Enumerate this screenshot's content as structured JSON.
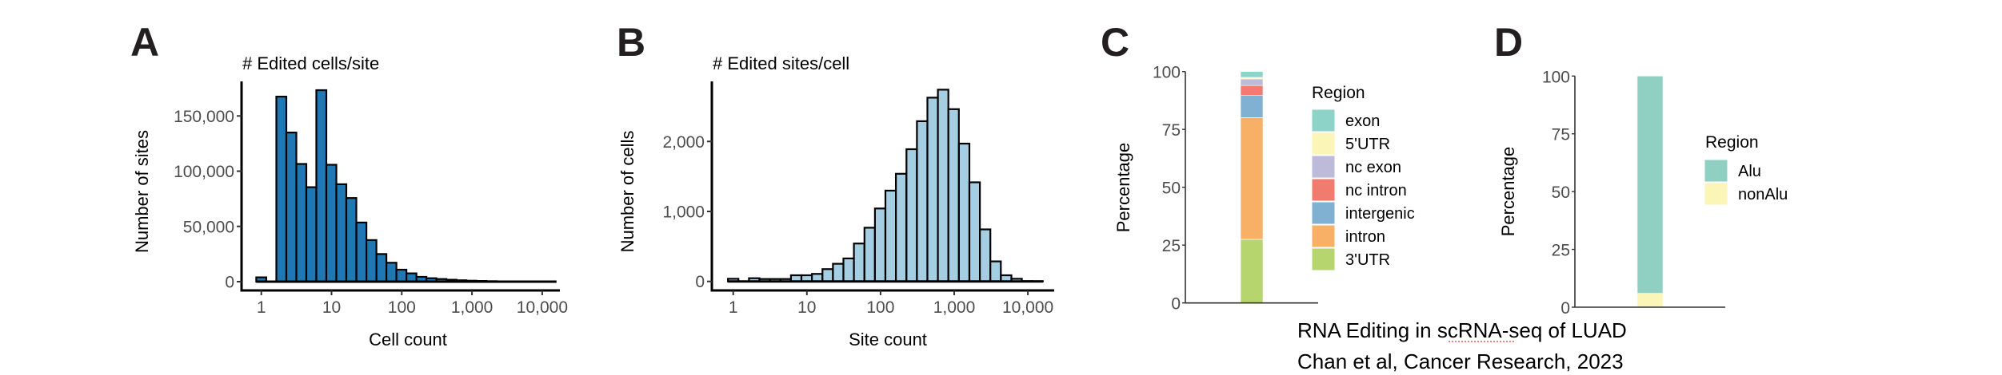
{
  "caption": {
    "line1": "RNA Editing in scRNA-seq of LUAD",
    "line2": "Chan et al, Cancer Research, 2023"
  },
  "chart_data": [
    {
      "panel": "A",
      "type": "bar",
      "subtype": "histogram",
      "title": "# Edited cells/site",
      "xlabel": "Cell count",
      "ylabel": "Number of sites",
      "x_scale": "log10",
      "xlim": [
        0.8,
        14000
      ],
      "ylim": [
        0,
        175000
      ],
      "xticks": [
        1,
        10,
        100,
        1000,
        10000
      ],
      "xtick_labels": [
        "1",
        "10",
        "100",
        "1,000",
        "10,000"
      ],
      "yticks": [
        0,
        50000,
        100000,
        150000
      ],
      "ytick_labels": [
        "0",
        "50,000",
        "100,000",
        "150,000"
      ],
      "fill_color": "#1f78b4",
      "bins_log10_center_start": 0,
      "bins_log10_width": 0.1425,
      "values": [
        3900,
        0,
        167500,
        135000,
        106500,
        85500,
        173300,
        105800,
        88200,
        75700,
        53500,
        37600,
        25000,
        17100,
        10800,
        7500,
        4300,
        3100,
        2400,
        1700,
        1200,
        900,
        650,
        450,
        300,
        200,
        130,
        80,
        40,
        20
      ],
      "grid": false
    },
    {
      "panel": "B",
      "type": "bar",
      "subtype": "histogram",
      "title": "# Edited sites/cell",
      "xlabel": "Site count",
      "ylabel": "Number of cells",
      "x_scale": "log10",
      "xlim": [
        0.8,
        16000
      ],
      "ylim": [
        0,
        2850
      ],
      "xticks": [
        1,
        10,
        100,
        1000,
        10000
      ],
      "xtick_labels": [
        "1",
        "10",
        "100",
        "1,000",
        "10,000"
      ],
      "yticks": [
        0,
        1000,
        2000
      ],
      "ytick_labels": [
        "0",
        "1,000",
        "2,000"
      ],
      "fill_color": "#a6cee3",
      "bins_log10_center_start": 0,
      "bins_log10_width": 0.1425,
      "values": [
        38,
        0,
        46,
        34,
        34,
        34,
        88,
        88,
        107,
        176,
        252,
        328,
        542,
        767,
        1042,
        1298,
        1538,
        1889,
        2290,
        2626,
        2740,
        2462,
        1969,
        1416,
        744,
        286,
        88,
        38,
        5,
        3
      ],
      "grid": false
    },
    {
      "panel": "C",
      "type": "bar",
      "subtype": "stacked-percent",
      "title": "",
      "xlabel": "",
      "ylabel": "Percentage",
      "ylim": [
        0,
        100
      ],
      "yticks": [
        0,
        25,
        50,
        75,
        100
      ],
      "ytick_labels": [
        "0",
        "25",
        "50",
        "75",
        "100"
      ],
      "legend_title": "Region",
      "legend_position": "right",
      "series": [
        {
          "name": "exon",
          "value": 2.5,
          "color": "#8dd3c7"
        },
        {
          "name": "5'UTR",
          "value": 0.7,
          "color": "#fbf5b8"
        },
        {
          "name": "nc exon",
          "value": 2.8,
          "color": "#bebada"
        },
        {
          "name": "nc intron",
          "value": 4.2,
          "color": "#f27b6f"
        },
        {
          "name": "intergenic",
          "value": 9.7,
          "color": "#80b1d3"
        },
        {
          "name": "intron",
          "value": 52.6,
          "color": "#f8b066"
        },
        {
          "name": "3'UTR",
          "value": 27.5,
          "color": "#b6d56f"
        }
      ],
      "grid": false
    },
    {
      "panel": "D",
      "type": "bar",
      "subtype": "stacked-percent",
      "title": "",
      "xlabel": "",
      "ylabel": "Percentage",
      "ylim": [
        0,
        100
      ],
      "yticks": [
        0,
        25,
        50,
        75,
        100
      ],
      "ytick_labels": [
        "0",
        "25",
        "50",
        "75",
        "100"
      ],
      "legend_title": "Region",
      "legend_position": "right",
      "series": [
        {
          "name": "Alu",
          "value": 94.0,
          "color": "#8fd0c3"
        },
        {
          "name": "nonAlu",
          "value": 6.0,
          "color": "#fbf5b8"
        }
      ],
      "grid": false
    }
  ]
}
